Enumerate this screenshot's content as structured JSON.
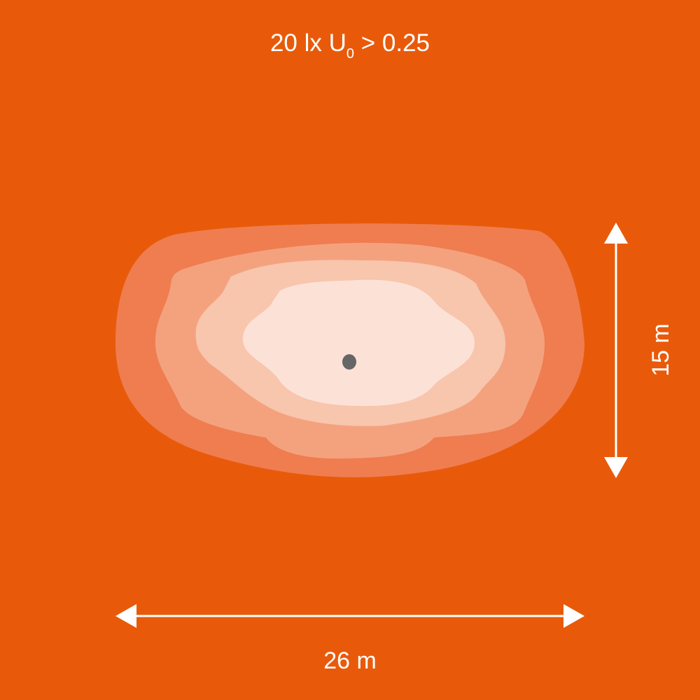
{
  "title": {
    "main": "20 lx U",
    "subscript": "0",
    "rest": " > 0.25"
  },
  "dimensions": {
    "height_label": "15 m",
    "width_label": "26 m"
  },
  "colors": {
    "background": "#E85A0A",
    "zone_1": "#EF7D50",
    "zone_2": "#F4A27E",
    "zone_3": "#F8C5AD",
    "zone_4": "#FCE1D6",
    "light_source": "#666666",
    "arrows": "#FFFFFF"
  }
}
